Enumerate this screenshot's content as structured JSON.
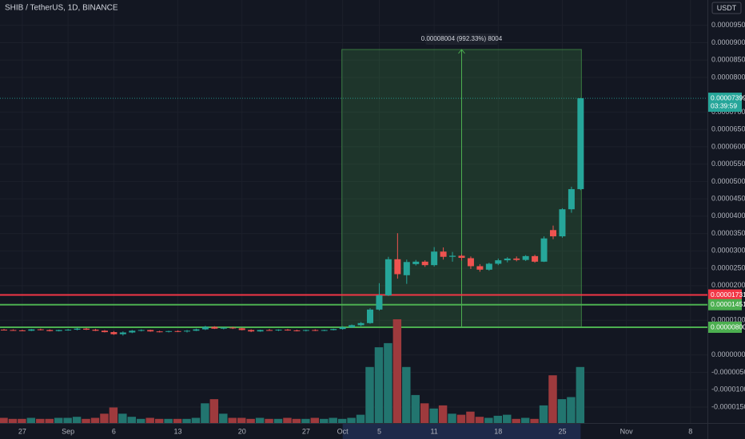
{
  "chart_data": {
    "type": "candlestick",
    "title": "SHIB / TetherUS, 1D, BINANCE",
    "currency": "USDT",
    "grid": true,
    "up_color": "#26a69a",
    "down_color": "#ef5350",
    "volume_up_color": "#22756f",
    "volume_down_color": "#9e3a3d",
    "categories": [
      null,
      null,
      "27",
      null,
      null,
      null,
      null,
      "Sep",
      null,
      null,
      null,
      null,
      "6",
      null,
      null,
      null,
      null,
      null,
      null,
      "13",
      null,
      null,
      null,
      null,
      null,
      null,
      "20",
      null,
      null,
      null,
      null,
      null,
      null,
      "27",
      null,
      null,
      null,
      "Oct",
      null,
      null,
      null,
      "5",
      null,
      null,
      null,
      null,
      null,
      "11",
      null,
      null,
      null,
      null,
      null,
      null,
      "18",
      null,
      null,
      null,
      null,
      null,
      null,
      "25",
      null,
      null,
      null,
      null,
      null,
      null,
      "Nov",
      null,
      null,
      null,
      null,
      null,
      null,
      "8",
      null
    ],
    "open": [
      7.3e-06,
      7.2e-06,
      7.1e-06,
      7e-06,
      7.4e-06,
      7.2e-06,
      6.9e-06,
      7.2e-06,
      7.3e-06,
      7.6e-06,
      7.3e-06,
      7e-06,
      6.6e-06,
      6e-06,
      6.5e-06,
      7e-06,
      7.2e-06,
      6.8e-06,
      6.7e-06,
      6.9e-06,
      6.8e-06,
      7e-06,
      7.4e-06,
      8.1e-06,
      7.6e-06,
      7.9e-06,
      7.7e-06,
      7.2e-06,
      6.8e-06,
      7.2e-06,
      7.1e-06,
      7.3e-06,
      7.1e-06,
      7e-06,
      7.2e-06,
      7e-06,
      7.2e-06,
      7.5e-06,
      8e-06,
      8.6e-06,
      9.2e-06,
      1.31e-05,
      1.72e-05,
      2.76e-05,
      2.3e-05,
      2.62e-05,
      2.69e-05,
      2.59e-05,
      2.98e-05,
      2.83e-05,
      2.86e-05,
      2.79e-05,
      2.56e-05,
      2.46e-05,
      2.63e-05,
      2.73e-05,
      2.78e-05,
      2.74e-05,
      2.85e-05,
      2.69e-05,
      3.6e-05,
      3.42e-05,
      4.2e-05,
      4.78e-05,
      null,
      null,
      null,
      null,
      null,
      null,
      null,
      null,
      null,
      null,
      null,
      null,
      null
    ],
    "high": [
      7.5e-06,
      7.4e-06,
      7.3e-06,
      7.5e-06,
      7.6e-06,
      7.4e-06,
      7.3e-06,
      7.5e-06,
      7.8e-06,
      7.8e-06,
      7.5e-06,
      7.2e-06,
      6.9e-06,
      6.8e-06,
      7.2e-06,
      7.4e-06,
      7.3e-06,
      7e-06,
      7e-06,
      7.1e-06,
      7.2e-06,
      7.6e-06,
      8.4e-06,
      8.3e-06,
      8e-06,
      8.1e-06,
      7.9e-06,
      7.4e-06,
      7.3e-06,
      7.5e-06,
      7.4e-06,
      7.5e-06,
      7.3e-06,
      7.3e-06,
      7.4e-06,
      7.3e-06,
      7.6e-06,
      8.3e-06,
      8.8e-06,
      9.5e-06,
      1.35e-05,
      2.07e-05,
      2.83e-05,
      3.51e-05,
      2.75e-05,
      2.74e-05,
      2.73e-05,
      3.11e-05,
      3.1e-05,
      2.97e-05,
      2.9e-05,
      2.84e-05,
      2.62e-05,
      2.66e-05,
      2.78e-05,
      2.82e-05,
      2.84e-05,
      2.88e-05,
      2.89e-05,
      3.42e-05,
      3.73e-05,
      4.23e-05,
      4.85e-05,
      7.41e-05,
      null,
      null,
      null,
      null,
      null,
      null,
      null,
      null,
      null,
      null,
      null,
      null,
      null
    ],
    "low": [
      7.1e-06,
      7e-06,
      6.9e-06,
      6.9e-06,
      7.1e-06,
      6.8e-06,
      6.8e-06,
      7e-06,
      7.1e-06,
      7.2e-06,
      6.9e-06,
      6.5e-06,
      5.8e-06,
      5.6e-06,
      6.3e-06,
      6.8e-06,
      6.7e-06,
      6.5e-06,
      6.5e-06,
      6.6e-06,
      6.5e-06,
      6.9e-06,
      7.2e-06,
      7.5e-06,
      7.4e-06,
      7.5e-06,
      7.1e-06,
      6.6e-06,
      6.7e-06,
      7e-06,
      6.9e-06,
      7e-06,
      6.8e-06,
      6.8e-06,
      6.9e-06,
      6.9e-06,
      7.1e-06,
      7.3e-06,
      7.8e-06,
      8.3e-06,
      9e-06,
      1.28e-05,
      1.7e-05,
      2.2e-05,
      2.05e-05,
      2.58e-05,
      2.54e-05,
      2.55e-05,
      2.75e-05,
      2.69e-05,
      2.72e-05,
      2.48e-05,
      2.4e-05,
      2.43e-05,
      2.59e-05,
      2.67e-05,
      2.7e-05,
      2.71e-05,
      2.66e-05,
      2.68e-05,
      3.34e-05,
      3.38e-05,
      4.1e-05,
      4.75e-05,
      null,
      null,
      null,
      null,
      null,
      null,
      null,
      null,
      null,
      null,
      null,
      null,
      null
    ],
    "close": [
      7.2e-06,
      7.1e-06,
      7e-06,
      7.4e-06,
      7.2e-06,
      6.9e-06,
      7.2e-06,
      7.3e-06,
      7.6e-06,
      7.3e-06,
      7e-06,
      6.6e-06,
      6e-06,
      6.5e-06,
      7e-06,
      7.2e-06,
      6.8e-06,
      6.7e-06,
      6.9e-06,
      6.8e-06,
      7e-06,
      7.4e-06,
      8.1e-06,
      7.6e-06,
      7.9e-06,
      7.7e-06,
      7.2e-06,
      6.8e-06,
      7.2e-06,
      7.1e-06,
      7.3e-06,
      7.1e-06,
      7e-06,
      7.2e-06,
      7e-06,
      7.2e-06,
      7.5e-06,
      8e-06,
      8.6e-06,
      9.2e-06,
      1.31e-05,
      1.72e-05,
      2.76e-05,
      2.33e-05,
      2.68e-05,
      2.69e-05,
      2.59e-05,
      2.98e-05,
      2.83e-05,
      2.86e-05,
      2.8e-05,
      2.56e-05,
      2.46e-05,
      2.63e-05,
      2.73e-05,
      2.78e-05,
      2.74e-05,
      2.85e-05,
      2.69e-05,
      3.36e-05,
      3.42e-05,
      4.2e-05,
      4.78e-05,
      7.399e-05,
      null,
      null,
      null,
      null,
      null,
      null,
      null,
      null,
      null,
      null,
      null,
      null,
      null
    ],
    "volume": [
      5,
      4,
      4,
      5,
      4,
      4,
      5,
      5,
      6,
      4,
      5,
      9,
      15,
      9,
      6,
      4,
      5,
      4,
      4,
      4,
      4,
      5,
      19,
      23,
      9,
      5,
      5,
      4,
      5,
      4,
      4,
      5,
      4,
      4,
      5,
      4,
      5,
      4,
      5,
      8,
      54,
      73,
      77,
      100,
      54,
      27,
      19,
      14,
      17,
      9,
      8,
      11,
      6,
      5,
      7,
      8,
      4,
      5,
      4,
      17,
      46,
      23,
      25,
      54,
      null,
      null,
      null,
      null,
      null,
      null,
      null,
      null,
      null,
      null,
      null,
      null,
      null
    ],
    "ylim": [
      -1.96e-05,
      0.0001023
    ],
    "yticks": [
      {
        "value": 9.5e-05,
        "label": "0.00009500"
      },
      {
        "value": 9e-05,
        "label": "0.00009000"
      },
      {
        "value": 8.5e-05,
        "label": "0.00008500"
      },
      {
        "value": 8e-05,
        "label": "0.00008000"
      },
      {
        "value": 7e-05,
        "label": "0.00007000"
      },
      {
        "value": 6.5e-05,
        "label": "0.00006500"
      },
      {
        "value": 6e-05,
        "label": "0.00006000"
      },
      {
        "value": 5.5e-05,
        "label": "0.00005500"
      },
      {
        "value": 5e-05,
        "label": "0.00005000"
      },
      {
        "value": 4.5e-05,
        "label": "0.00004500"
      },
      {
        "value": 4e-05,
        "label": "0.00004000"
      },
      {
        "value": 3.5e-05,
        "label": "0.00003500"
      },
      {
        "value": 3e-05,
        "label": "0.00003000"
      },
      {
        "value": 2.5e-05,
        "label": "0.00002500"
      },
      {
        "value": 2e-05,
        "label": "0.00002000"
      },
      {
        "value": 1e-05,
        "label": "0.00001000"
      },
      {
        "value": 0,
        "label": "0.00000000"
      },
      {
        "value": -5e-06,
        "label": "-0.00000500"
      },
      {
        "value": -1e-05,
        "label": "-0.00001000"
      },
      {
        "value": -1.5e-05,
        "label": "-0.00001500"
      }
    ],
    "price_lines": [
      {
        "value": 1.731e-05,
        "label": "0.00001731",
        "color": "#f23645"
      },
      {
        "value": 1.451e-05,
        "label": "0.00001451",
        "color": "#4caf50"
      },
      {
        "value": 8e-06,
        "label": "0.00000800",
        "color": "#4caf50"
      }
    ],
    "last_price": {
      "value": 7.399e-05,
      "label": "0.00007399",
      "countdown": "03:39:59",
      "color": "#26a69a"
    },
    "measure": {
      "start": 37,
      "end": 63,
      "low": 8e-06,
      "high": 8.804e-05,
      "label": "0.00008004 (992.33%) 8004",
      "color": "#4caf50"
    }
  }
}
